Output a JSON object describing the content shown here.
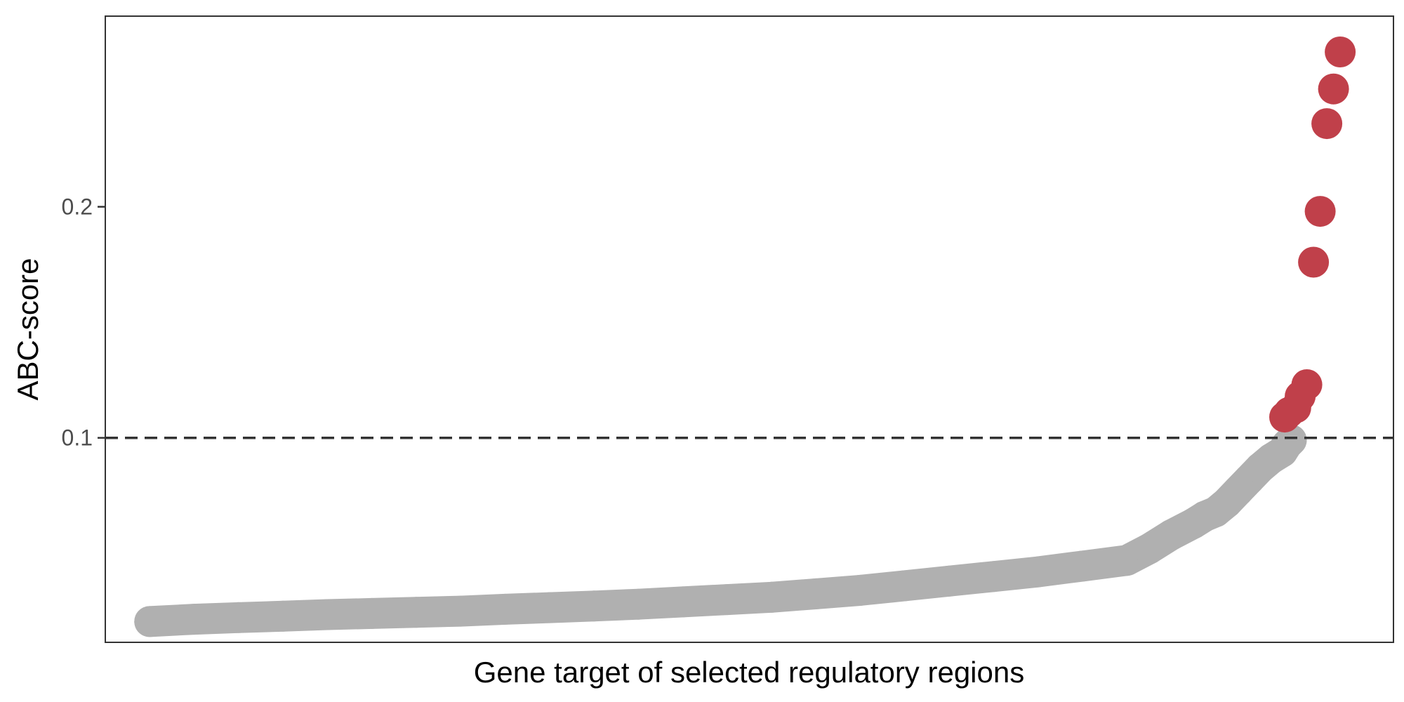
{
  "chart_data": {
    "type": "scatter",
    "title": "",
    "xlabel": "Gene target of selected regulatory regions",
    "ylabel": "ABC-score",
    "x_ticks_visible": false,
    "y_ticks": [
      0.1,
      0.2
    ],
    "y_tick_labels": [
      "0.1",
      "0.2"
    ],
    "xlim": [
      -20,
      560
    ],
    "ylim": [
      0.0115,
      0.2825
    ],
    "grid": false,
    "legend": "none",
    "threshold": {
      "y": 0.1,
      "style": "dashed",
      "color": "#333333"
    },
    "series": [
      {
        "color": "#b0b0b0",
        "x": [
          0,
          20,
          40,
          60,
          80,
          100,
          120,
          140,
          160,
          180,
          200,
          220,
          240,
          260,
          280,
          300,
          320,
          340,
          360,
          380,
          400,
          420,
          440,
          450,
          460,
          470,
          475,
          480,
          485,
          490,
          495,
          500,
          505,
          510,
          512,
          514
        ],
        "y": [
          0.0205,
          0.0215,
          0.0222,
          0.0228,
          0.0235,
          0.024,
          0.0245,
          0.025,
          0.0258,
          0.0265,
          0.0272,
          0.028,
          0.029,
          0.03,
          0.031,
          0.0325,
          0.034,
          0.036,
          0.038,
          0.04,
          0.042,
          0.0445,
          0.047,
          0.052,
          0.058,
          0.063,
          0.066,
          0.068,
          0.072,
          0.077,
          0.082,
          0.087,
          0.091,
          0.094,
          0.097,
          0.099
        ]
      },
      {
        "color": "#c0404a",
        "x": [
          511,
          513,
          516,
          518,
          521,
          524,
          527,
          530,
          533,
          536
        ],
        "y": [
          0.109,
          0.111,
          0.113,
          0.118,
          0.123,
          0.176,
          0.198,
          0.236,
          0.251,
          0.267
        ]
      }
    ]
  }
}
